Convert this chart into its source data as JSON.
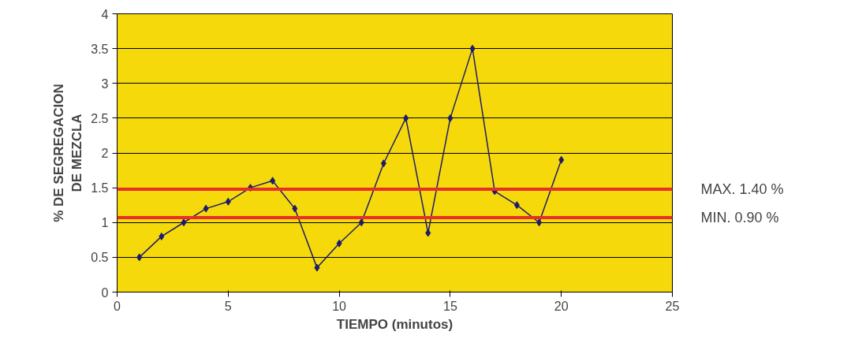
{
  "chart_data": {
    "type": "line",
    "xlabel": "TIEMPO (minutos)",
    "ylabel": "% DE SEGREGACION\nDE MEZCLA",
    "x": [
      1,
      2,
      3,
      4,
      5,
      6,
      7,
      8,
      9,
      10,
      11,
      12,
      13,
      14,
      15,
      16,
      17,
      18,
      19,
      20
    ],
    "series": [
      {
        "color": "#1c1c6e",
        "values": [
          0.5,
          0.8,
          1.0,
          1.2,
          1.3,
          1.5,
          1.6,
          1.2,
          0.35,
          0.7,
          1.0,
          1.85,
          2.5,
          0.85,
          2.5,
          3.5,
          1.45,
          1.25,
          1.0,
          1.9
        ]
      }
    ],
    "xlim": [
      0,
      25
    ],
    "xticks": [
      0,
      5,
      10,
      15,
      20,
      25
    ],
    "ylim": [
      0,
      4
    ],
    "yticks": [
      0,
      {
        "value": 0.5,
        "label": "0.5"
      },
      1,
      {
        "value": 1.5,
        "label": "1.5"
      },
      2,
      {
        "value": 2.5,
        "label": "2.5"
      },
      3,
      {
        "value": 3.5,
        "label": "3.5"
      },
      4
    ],
    "ref_lines": [
      {
        "axis": "y",
        "value": 1.48,
        "label": "MAX. 1.40 %",
        "color": "#e8302a"
      },
      {
        "axis": "y",
        "value": 1.07,
        "label": "MIN.  0.90 %",
        "color": "#e8302a"
      }
    ],
    "grid": "y",
    "marker": "diamond",
    "line_style": "solid"
  }
}
